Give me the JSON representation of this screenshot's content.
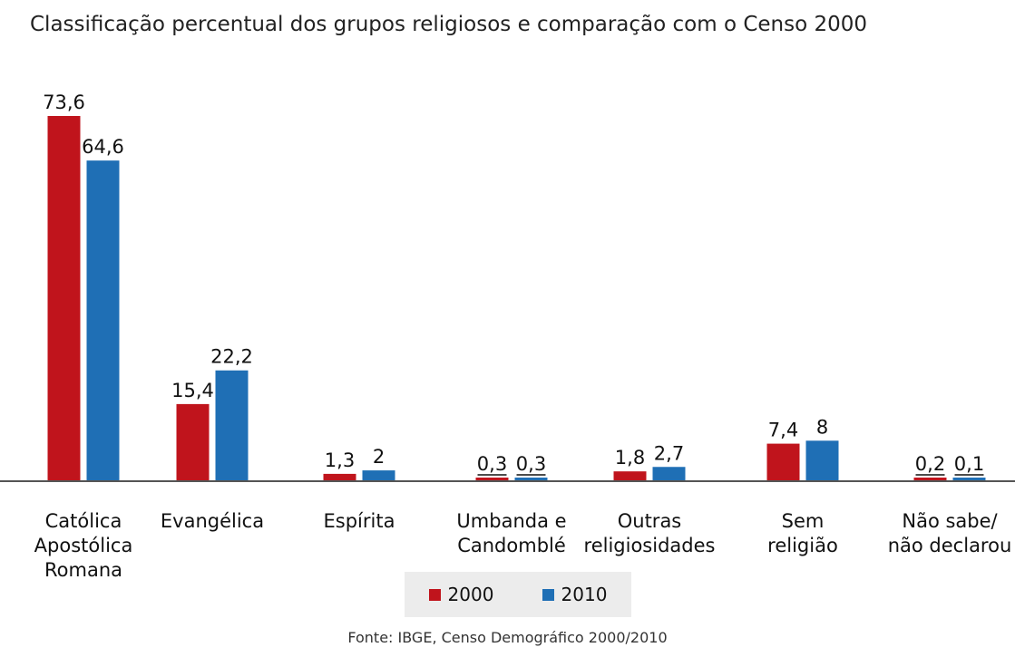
{
  "chart_data": {
    "type": "bar",
    "title": "Classificação percentual dos grupos religiosos e comparação com o Censo 2000",
    "categories": [
      [
        "Católica",
        "Apostólica",
        "Romana"
      ],
      [
        "Evangélica"
      ],
      [
        "Espírita"
      ],
      [
        "Umbanda e",
        "Candomblé"
      ],
      [
        "Outras",
        "religiosidades"
      ],
      [
        "Sem",
        "religião"
      ],
      [
        "Não sabe/",
        "não declarou"
      ]
    ],
    "series": [
      {
        "name": "2000",
        "color": "#c0141c",
        "values": [
          73.6,
          15.4,
          1.3,
          0.3,
          1.8,
          7.4,
          0.2
        ],
        "labels": [
          "73,6",
          "15,4",
          "1,3",
          "0,3",
          "1,8",
          "7,4",
          "0,2"
        ]
      },
      {
        "name": "2010",
        "color": "#1f6fb5",
        "values": [
          64.6,
          22.2,
          2,
          0.3,
          2.7,
          8,
          0.1
        ],
        "labels": [
          "64,6",
          "22,2",
          "2",
          "0,3",
          "2,7",
          "8",
          "0,1"
        ]
      }
    ],
    "ylim": [
      0,
      73.6
    ],
    "grid": false,
    "legend_position": "bottom-center",
    "source": "Fonte: IBGE, Censo Demográfico 2000/2010"
  }
}
